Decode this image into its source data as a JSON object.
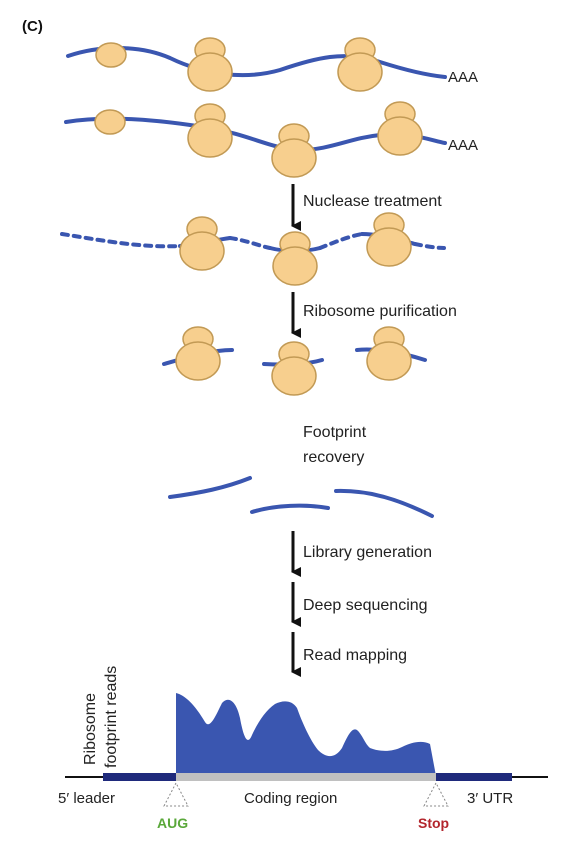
{
  "panel_label": "(C)",
  "poly_a_tail": "AAA",
  "steps": {
    "nuclease": "Nuclease treatment",
    "purification": "Ribosome purification",
    "recovery_line1": "Footprint",
    "recovery_line2": "recovery",
    "library": "Library generation",
    "sequencing": "Deep sequencing",
    "mapping": "Read mapping"
  },
  "plot": {
    "ylabel_line1": "Ribosome",
    "ylabel_line2": "footprint reads"
  },
  "regions": {
    "five_prime": "5′ leader",
    "coding": "Coding region",
    "three_prime": "3′ UTR"
  },
  "codons": {
    "start": "AUG",
    "stop": "Stop"
  },
  "colors": {
    "mrna": "#3a56b0",
    "ribosome_fill": "#f7cf8e",
    "ribosome_stroke": "#c29a55",
    "coverage": "#3a56b0",
    "utr_bar": "#1f2a7c",
    "cds_bar": "#c0c0c0",
    "start_codon": "#5aa83a",
    "stop_codon": "#b3252c",
    "arrow": "#111111"
  }
}
